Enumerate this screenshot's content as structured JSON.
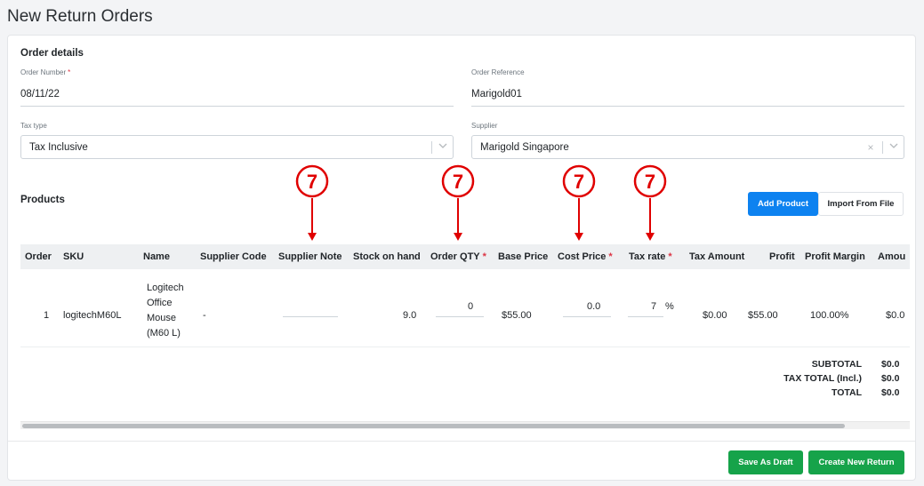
{
  "page": {
    "title": "New Return Orders"
  },
  "order_details": {
    "heading": "Order details",
    "order_number": {
      "label": "Order Number",
      "required": "*",
      "value": "08/11/22"
    },
    "order_reference": {
      "label": "Order Reference",
      "value": "Marigold01"
    },
    "tax_type": {
      "label": "Tax type",
      "value": "Tax Inclusive"
    },
    "supplier": {
      "label": "Supplier",
      "value": "Marigold Singapore",
      "clear": "×"
    }
  },
  "icons": {
    "chevron": "chevron-down-icon",
    "clear": "close-icon"
  },
  "products": {
    "heading": "Products",
    "add_button": "Add Product",
    "import_button": "Import From File",
    "columns": {
      "order": "Order",
      "sku": "SKU",
      "name": "Name",
      "supplier_code": "Supplier Code",
      "supplier_note": "Supplier Note",
      "stock": "Stock on hand",
      "order_qty": "Order QTY",
      "base_price": "Base Price",
      "cost_price": "Cost Price",
      "tax_rate": "Tax rate",
      "tax_amount": "Tax Amount",
      "profit": "Profit",
      "profit_margin": "Profit Margin",
      "amount": "Amou"
    },
    "required_mark": "*",
    "rows": [
      {
        "order": "1",
        "sku": "logitechM60L",
        "name_lines": [
          "Logitech",
          "Office",
          "Mouse",
          "(M60 L)"
        ],
        "supplier_code": "-",
        "supplier_note": "",
        "stock": "9.0",
        "order_qty": "0",
        "base_price": "$55.00",
        "cost_price": "0.0",
        "tax_rate": "7",
        "tax_unit": "%",
        "tax_amount": "$0.00",
        "profit": "$55.00",
        "profit_margin": "100.00%",
        "amount": "$0.0"
      }
    ],
    "totals": {
      "subtotal_label": "SUBTOTAL",
      "subtotal_value": "$0.0",
      "tax_label": "TAX TOTAL (Incl.)",
      "tax_value": "$0.0",
      "total_label": "TOTAL",
      "total_value": "$0.0"
    }
  },
  "annotations": {
    "badge": "7",
    "color": "#e00000"
  },
  "footer": {
    "save_draft": "Save As Draft",
    "create": "Create New Return"
  },
  "colors": {
    "primary": "#0d82f0",
    "success": "#16a34a",
    "required": "#dc3545"
  }
}
